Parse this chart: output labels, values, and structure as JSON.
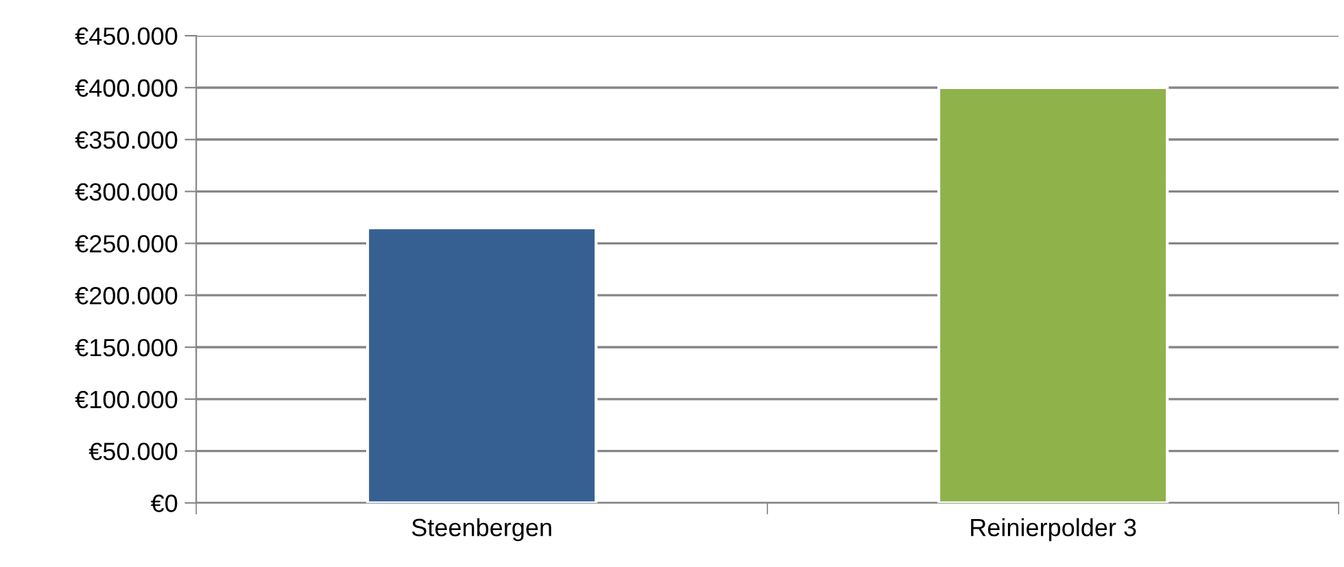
{
  "chart_data": {
    "type": "bar",
    "categories": [
      "Steenbergen",
      "Reinierpolder 3"
    ],
    "values": [
      265000,
      400000
    ],
    "colors": [
      "#376092",
      "#8fb24b"
    ],
    "ylim": [
      0,
      450000
    ],
    "yticks": [
      {
        "value": 0,
        "label": "€0"
      },
      {
        "value": 50000,
        "label": "€50.000"
      },
      {
        "value": 100000,
        "label": "€100.000"
      },
      {
        "value": 150000,
        "label": "€150.000"
      },
      {
        "value": 200000,
        "label": "€200.000"
      },
      {
        "value": 250000,
        "label": "€250.000"
      },
      {
        "value": 300000,
        "label": "€300.000"
      },
      {
        "value": 350000,
        "label": "€350.000"
      },
      {
        "value": 400000,
        "label": "€400.000"
      },
      {
        "value": 450000,
        "label": "€450.000"
      }
    ],
    "grid": "y",
    "legend": false
  }
}
